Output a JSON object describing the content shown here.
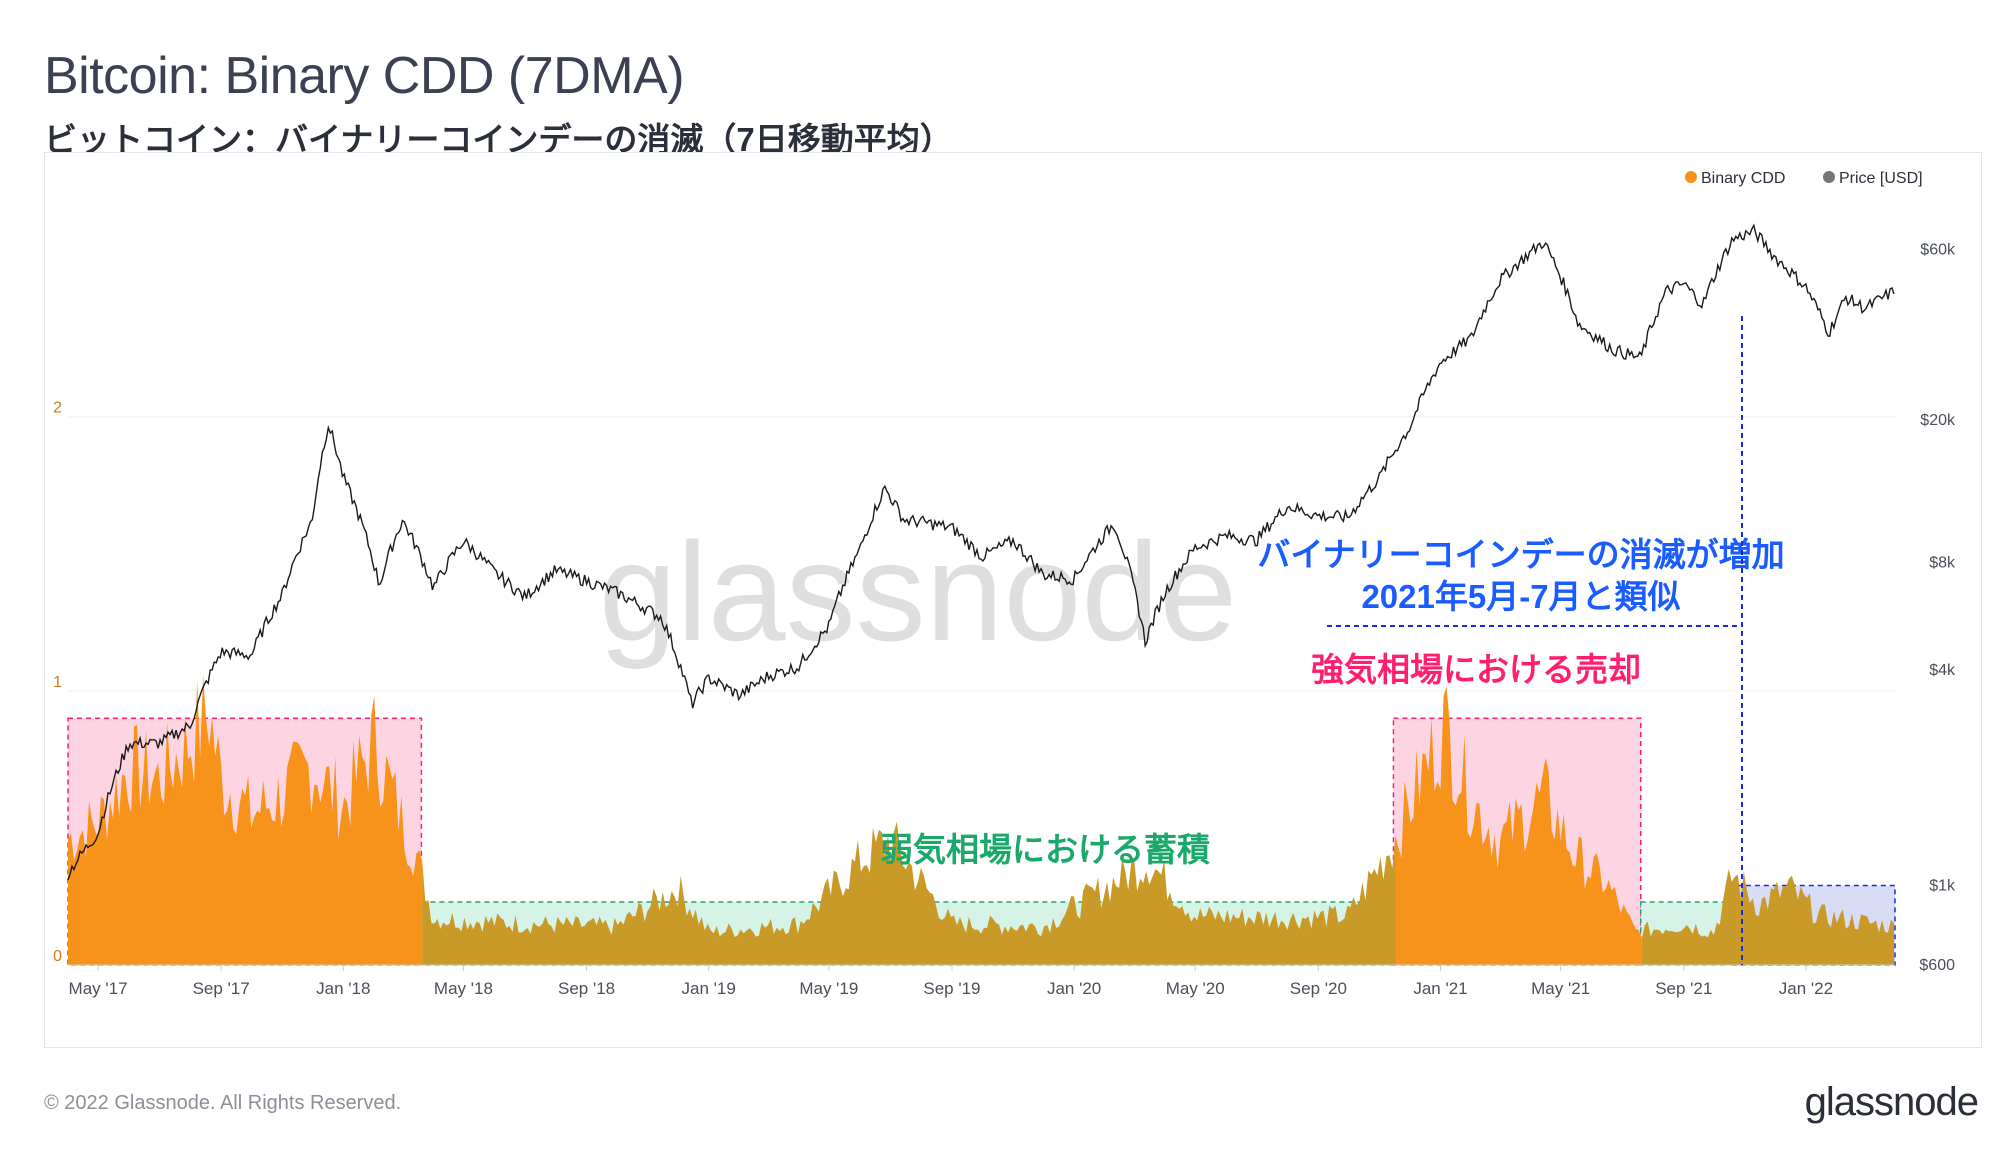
{
  "title": "Bitcoin: Binary CDD (7DMA)",
  "subtitle": "ビットコイン：バイナリーコインデーの消滅（7日移動平均）",
  "footer": "© 2022 Glassnode. All Rights Reserved.",
  "logo": "glassnode",
  "watermark": "glassnode",
  "colors": {
    "cdd": "#f7931a",
    "cdd_bear": "#c99a28",
    "price": "#1a1a1a",
    "bull_box": "#fdd5e2",
    "bear_box": "#d6f3e7",
    "recent_box": "#d8dcf5",
    "annot_blue": "#1a5cff",
    "annot_pink": "#ff1f6e",
    "annot_green": "#1aa96b"
  },
  "annotations": {
    "blue_line1": "バイナリーコインデーの消滅が増加",
    "blue_line2": "2021年5月-7月と類似",
    "pink": "強気相場における売却",
    "green": "弱気相場における蓄積"
  },
  "chart_data": {
    "type": "area",
    "legend": {
      "position": "top-right",
      "items": [
        "Binary CDD",
        "Price [USD]"
      ]
    },
    "x_ticks": [
      "May '17",
      "Sep '17",
      "Jan '18",
      "May '18",
      "Sep '18",
      "Jan '19",
      "May '19",
      "Sep '19",
      "Jan '20",
      "May '20",
      "Sep '20",
      "Jan '21",
      "May '21",
      "Sep '21",
      "Jan '22"
    ],
    "x_range": [
      "2017-04-01",
      "2022-03-31"
    ],
    "y_left": {
      "label": "",
      "ticks": [
        "0",
        "1",
        "2"
      ],
      "range": [
        0,
        2.9
      ]
    },
    "y_right": {
      "label": "",
      "scale": "log",
      "ticks": [
        "$600",
        "$1k",
        "$4k",
        "$8k",
        "$20k",
        "$60k"
      ],
      "tick_values": [
        600,
        1000,
        4000,
        8000,
        20000,
        60000
      ]
    },
    "series": [
      {
        "name": "Binary CDD",
        "axis": "left",
        "points": [
          [
            "2017-04-01",
            0.46
          ],
          [
            "2017-05-01",
            0.52
          ],
          [
            "2017-06-01",
            0.72
          ],
          [
            "2017-07-01",
            0.68
          ],
          [
            "2017-08-01",
            0.82
          ],
          [
            "2017-08-20",
            0.92
          ],
          [
            "2017-09-01",
            0.68
          ],
          [
            "2017-10-01",
            0.55
          ],
          [
            "2017-11-01",
            0.62
          ],
          [
            "2017-12-01",
            0.73
          ],
          [
            "2018-01-01",
            0.58
          ],
          [
            "2018-02-01",
            0.82
          ],
          [
            "2018-03-01",
            0.52
          ],
          [
            "2018-03-15",
            0.4
          ],
          [
            "2018-04-01",
            0.17
          ],
          [
            "2018-07-01",
            0.15
          ],
          [
            "2018-10-01",
            0.14
          ],
          [
            "2018-12-01",
            0.28
          ],
          [
            "2019-01-01",
            0.12
          ],
          [
            "2019-04-01",
            0.15
          ],
          [
            "2019-06-01",
            0.38
          ],
          [
            "2019-07-01",
            0.46
          ],
          [
            "2019-09-01",
            0.15
          ],
          [
            "2019-12-01",
            0.14
          ],
          [
            "2020-03-15",
            0.38
          ],
          [
            "2020-05-01",
            0.18
          ],
          [
            "2020-08-01",
            0.17
          ],
          [
            "2020-10-01",
            0.18
          ],
          [
            "2020-11-15",
            0.45
          ],
          [
            "2021-01-05",
            0.88
          ],
          [
            "2021-02-01",
            0.6
          ],
          [
            "2021-03-01",
            0.45
          ],
          [
            "2021-04-15",
            0.62
          ],
          [
            "2021-05-15",
            0.4
          ],
          [
            "2021-06-15",
            0.3
          ],
          [
            "2021-07-15",
            0.12
          ],
          [
            "2021-09-01",
            0.15
          ],
          [
            "2021-10-01",
            0.12
          ],
          [
            "2021-10-20",
            0.33
          ],
          [
            "2021-11-15",
            0.22
          ],
          [
            "2021-12-15",
            0.28
          ],
          [
            "2022-01-15",
            0.18
          ],
          [
            "2022-03-31",
            0.14
          ]
        ]
      },
      {
        "name": "Price [USD]",
        "axis": "right",
        "points": [
          [
            "2017-04-01",
            1080
          ],
          [
            "2017-05-01",
            1400
          ],
          [
            "2017-06-01",
            2500
          ],
          [
            "2017-07-01",
            2500
          ],
          [
            "2017-08-01",
            2800
          ],
          [
            "2017-09-01",
            4500
          ],
          [
            "2017-10-01",
            4400
          ],
          [
            "2017-11-01",
            6500
          ],
          [
            "2017-12-01",
            10500
          ],
          [
            "2017-12-17",
            19500
          ],
          [
            "2018-01-01",
            13800
          ],
          [
            "2018-02-06",
            6900
          ],
          [
            "2018-03-01",
            10500
          ],
          [
            "2018-04-01",
            6800
          ],
          [
            "2018-05-01",
            9200
          ],
          [
            "2018-06-01",
            7500
          ],
          [
            "2018-07-01",
            6400
          ],
          [
            "2018-08-01",
            7600
          ],
          [
            "2018-09-01",
            7100
          ],
          [
            "2018-10-01",
            6600
          ],
          [
            "2018-11-15",
            5600
          ],
          [
            "2018-12-15",
            3200
          ],
          [
            "2019-01-01",
            3800
          ],
          [
            "2019-02-01",
            3400
          ],
          [
            "2019-03-01",
            3850
          ],
          [
            "2019-04-01",
            4100
          ],
          [
            "2019-05-01",
            5300
          ],
          [
            "2019-06-01",
            8700
          ],
          [
            "2019-06-26",
            12900
          ],
          [
            "2019-07-15",
            10500
          ],
          [
            "2019-08-01",
            10400
          ],
          [
            "2019-09-01",
            10000
          ],
          [
            "2019-10-01",
            8300
          ],
          [
            "2019-11-01",
            9200
          ],
          [
            "2019-12-01",
            7400
          ],
          [
            "2020-01-01",
            7200
          ],
          [
            "2020-02-10",
            10300
          ],
          [
            "2020-03-12",
            4800
          ],
          [
            "2020-04-01",
            6600
          ],
          [
            "2020-05-01",
            8800
          ],
          [
            "2020-06-01",
            9500
          ],
          [
            "2020-07-01",
            9200
          ],
          [
            "2020-08-01",
            11500
          ],
          [
            "2020-09-01",
            10800
          ],
          [
            "2020-10-01",
            10700
          ],
          [
            "2020-11-01",
            13800
          ],
          [
            "2020-12-01",
            19000
          ],
          [
            "2021-01-01",
            29000
          ],
          [
            "2021-02-01",
            34000
          ],
          [
            "2021-03-01",
            49000
          ],
          [
            "2021-04-14",
            63000
          ],
          [
            "2021-05-19",
            37000
          ],
          [
            "2021-06-22",
            31500
          ],
          [
            "2021-07-20",
            29800
          ],
          [
            "2021-08-15",
            46000
          ],
          [
            "2021-09-01",
            48000
          ],
          [
            "2021-09-20",
            42000
          ],
          [
            "2021-10-20",
            64000
          ],
          [
            "2021-11-10",
            67500
          ],
          [
            "2021-12-01",
            57000
          ],
          [
            "2022-01-01",
            47000
          ],
          [
            "2022-01-24",
            35000
          ],
          [
            "2022-02-10",
            44000
          ],
          [
            "2022-03-01",
            41000
          ],
          [
            "2022-03-31",
            46000
          ]
        ]
      }
    ],
    "regions": [
      {
        "label": "強気相場における売却",
        "kind": "bull",
        "from": "2017-04-01",
        "to": "2018-03-20"
      },
      {
        "label": "弱気相場における蓄積",
        "kind": "bear",
        "from": "2018-03-20",
        "to": "2020-11-15"
      },
      {
        "label": "強気相場における売却",
        "kind": "bull",
        "from": "2020-11-15",
        "to": "2021-07-20"
      },
      {
        "label": "弱気相場における蓄積",
        "kind": "bear",
        "from": "2021-07-20",
        "to": "2021-10-15"
      },
      {
        "label": "2021年5月-7月と類似",
        "kind": "recent",
        "from": "2021-10-15",
        "to": "2022-03-31"
      }
    ]
  }
}
